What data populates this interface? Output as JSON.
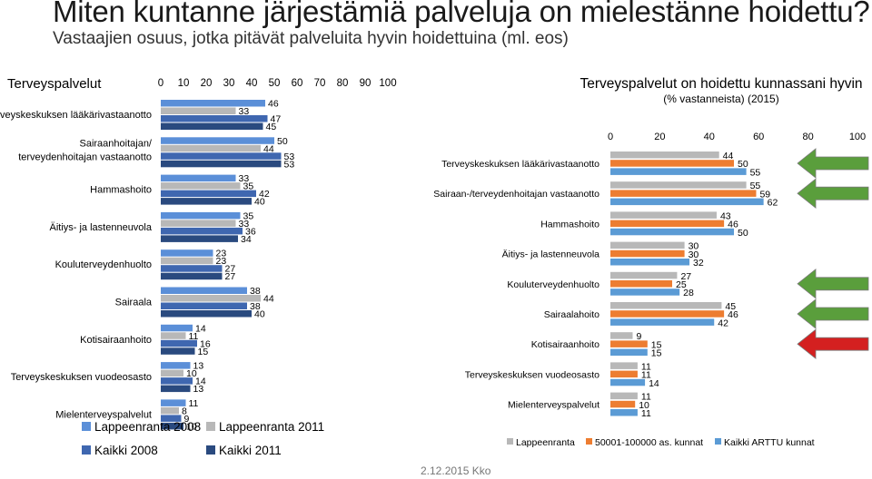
{
  "page": {
    "title": "Miten kuntanne järjestämiä palveluja on mielestänne hoidettu?",
    "subtitle": "Vastaajien osuus, jotka pitävät palveluita hyvin hoidettuina (ml. eos)",
    "footer": "2.12.2015 Kko"
  },
  "arrows": [
    {
      "color": "#5a9e3c",
      "direction": "left",
      "row": "Terveyskeskuksen lääkärivastaanotto"
    },
    {
      "color": "#5a9e3c",
      "direction": "left",
      "row": "Sairaan-/terveydenhoitajan vastaanotto"
    },
    {
      "color": "#5a9e3c",
      "direction": "left",
      "row": "Kouluterveydenhuolto"
    },
    {
      "color": "#5a9e3c",
      "direction": "left",
      "row": "Sairaalahoito"
    },
    {
      "color": "#d42020",
      "direction": "left",
      "row": "Kotisairaanhoito"
    }
  ],
  "chart_data": [
    {
      "type": "bar",
      "orientation": "horizontal",
      "title": "Terveyspalvelut",
      "categories": [
        "Terveyskeskuksen lääkärivastaanotto",
        "Sairaanhoitajan/terveydenhoitajan vastaanotto",
        "Hammashoito",
        "Äitiys- ja lastenneuvola",
        "Kouluterveydenhuolto",
        "Sairaala",
        "Kotisairaanhoito",
        "Terveyskeskuksen vuodeosasto",
        "Mielenterveyspalvelut"
      ],
      "x_ticks": [
        "0",
        "10",
        "20",
        "30",
        "40",
        "50",
        "60",
        "70",
        "80",
        "90",
        "100"
      ],
      "xlim": [
        0,
        100
      ],
      "grid": false,
      "legend_position": "bottom",
      "series": [
        {
          "name": "Lappeenranta 2008",
          "color": "#5b8fd8",
          "values": [
            46,
            50,
            33,
            35,
            23,
            38,
            14,
            13,
            11
          ]
        },
        {
          "name": "Lappeenranta 2011",
          "color": "#b8b8b8",
          "values": [
            33,
            44,
            35,
            33,
            23,
            44,
            11,
            10,
            8
          ]
        },
        {
          "name": "Kaikki 2008",
          "color": "#3f67b0",
          "values": [
            47,
            53,
            42,
            36,
            27,
            38,
            16,
            14,
            9
          ]
        },
        {
          "name": "Kaikki 2011",
          "color": "#2a4a7f",
          "values": [
            45,
            53,
            40,
            34,
            27,
            40,
            15,
            13,
            10
          ]
        }
      ]
    },
    {
      "type": "bar",
      "orientation": "horizontal",
      "title": "Terveyspalvelut on hoidettu kunnassani hyvin",
      "subtitle": "(% vastanneista) (2015)",
      "categories": [
        "Terveyskeskuksen lääkärivastaanotto",
        "Sairaan-/terveydenhoitajan vastaanotto",
        "Hammashoito",
        "Äitiys- ja lastenneuvola",
        "Kouluterveydenhuolto",
        "Sairaalahoito",
        "Kotisairaanhoito",
        "Terveyskeskuksen vuodeosasto",
        "Mielenterveyspalvelut"
      ],
      "x_ticks": [
        "0",
        "20",
        "40",
        "60",
        "80",
        "100"
      ],
      "xlim": [
        0,
        100
      ],
      "grid": false,
      "legend_position": "bottom",
      "series": [
        {
          "name": "Lappeenranta",
          "color": "#b8b8b8",
          "values": [
            44,
            55,
            43,
            30,
            27,
            45,
            9,
            11,
            11
          ]
        },
        {
          "name": "50001-100000 as. kunnat",
          "color": "#ed7d31",
          "values": [
            50,
            59,
            46,
            30,
            25,
            46,
            15,
            11,
            10
          ]
        },
        {
          "name": "Kaikki ARTTU kunnat",
          "color": "#5b9bd5",
          "values": [
            55,
            62,
            50,
            32,
            28,
            42,
            15,
            14,
            11
          ]
        }
      ]
    }
  ]
}
